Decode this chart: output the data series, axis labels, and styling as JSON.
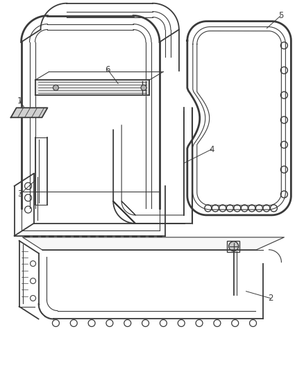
{
  "background_color": "#ffffff",
  "line_color": "#3a3a3a",
  "fig_width": 4.38,
  "fig_height": 5.33,
  "dpi": 100,
  "label_fontsize": 8.5
}
